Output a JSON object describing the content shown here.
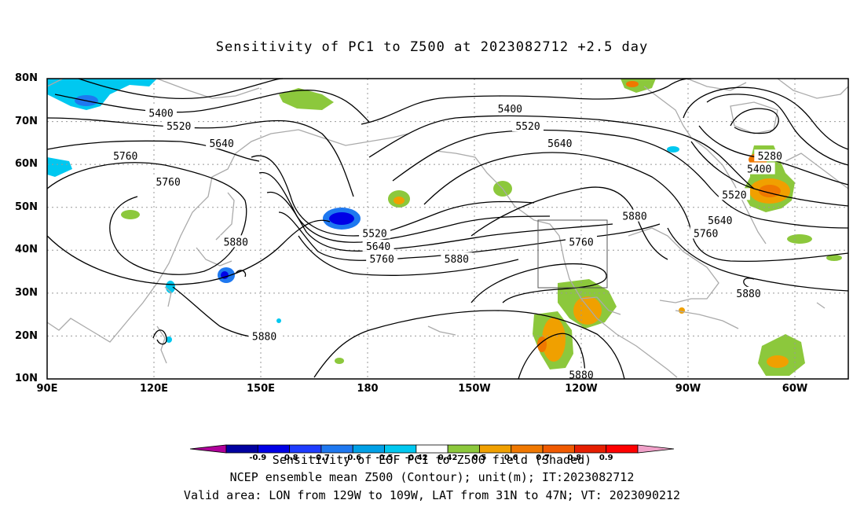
{
  "title": "Sensitivity of PC1 to Z500 at 2023082712 +2.5 day",
  "lat_ticks": [
    "80N",
    "70N",
    "60N",
    "50N",
    "40N",
    "30N",
    "20N",
    "10N"
  ],
  "lon_ticks": [
    "90E",
    "120E",
    "150E",
    "180",
    "150W",
    "120W",
    "90W",
    "60W"
  ],
  "contour_labels": [
    {
      "text": "5400",
      "lon": 122,
      "lat": 72
    },
    {
      "text": "5520",
      "lon": 127,
      "lat": 69
    },
    {
      "text": "5640",
      "lon": 139,
      "lat": 65
    },
    {
      "text": "5760",
      "lon": 112,
      "lat": 62
    },
    {
      "text": "5760",
      "lon": 124,
      "lat": 56
    },
    {
      "text": "5880",
      "lon": 143,
      "lat": 42
    },
    {
      "text": "5520",
      "lon": -178,
      "lat": 44
    },
    {
      "text": "5640",
      "lon": -177,
      "lat": 41
    },
    {
      "text": "5760",
      "lon": -176,
      "lat": 38
    },
    {
      "text": "5880",
      "lon": -155,
      "lat": 38
    },
    {
      "text": "5400",
      "lon": -140,
      "lat": 73
    },
    {
      "text": "5520",
      "lon": -135,
      "lat": 69
    },
    {
      "text": "5640",
      "lon": -126,
      "lat": 65
    },
    {
      "text": "5760",
      "lon": -120,
      "lat": 42
    },
    {
      "text": "5880",
      "lon": -105,
      "lat": 48
    },
    {
      "text": "5280",
      "lon": -67,
      "lat": 62
    },
    {
      "text": "5400",
      "lon": -70,
      "lat": 59
    },
    {
      "text": "5520",
      "lon": -77,
      "lat": 53
    },
    {
      "text": "5640",
      "lon": -81,
      "lat": 47
    },
    {
      "text": "5760",
      "lon": -85,
      "lat": 44
    },
    {
      "text": "5880",
      "lon": -73,
      "lat": 30
    },
    {
      "text": "5880",
      "lon": 151,
      "lat": 20
    },
    {
      "text": "5880",
      "lon": -120,
      "lat": 11
    }
  ],
  "valid_area": {
    "lon_min": -129,
    "lon_max": -109,
    "lat_min": 31,
    "lat_max": 47
  },
  "colorbar": {
    "labels": [
      "-0.9",
      "-0.8",
      "-0.7",
      "-0.6",
      "-0.5",
      "-0.42",
      "0.42",
      "0.5",
      "0.6",
      "0.7",
      "0.8",
      "0.9"
    ],
    "colors": [
      "#b0009a",
      "#0000a0",
      "#0000e6",
      "#1e3cff",
      "#1e78f0",
      "#00a0e6",
      "#00c8f0",
      "#ffffff",
      "#8cc83c",
      "#f0a000",
      "#f07800",
      "#f05a00",
      "#e61e00",
      "#ff0000",
      "#f0a0c8"
    ]
  },
  "captions": [
    "Sensitivity of EOF PC1 to Z500 field (Shaded)",
    "NCEP ensemble mean Z500 (Contour); unit(m); IT:2023082712",
    "Valid area: LON from 129W to 109W, LAT from 31N to 47N; VT: 2023090212"
  ],
  "colors": {
    "contour": "#000000",
    "coast": "#aaaaaa",
    "grid": "#999999",
    "box": "#555555"
  }
}
